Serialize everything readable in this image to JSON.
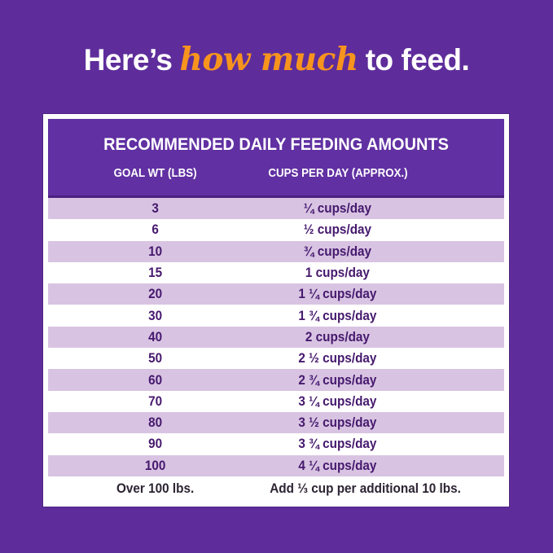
{
  "colors": {
    "background": "#5e2d9b",
    "header_purple": "#6130a2",
    "header_border": "#4b2282",
    "row_shaded": "#d8c4e2",
    "row_text": "#46196e",
    "footer_text": "#2d2433",
    "highlight_orange": "#f7941e",
    "headline_text": "#ffffff",
    "card_background": "#ffffff"
  },
  "headline": {
    "prefix": "Here’s",
    "highlight": "how much",
    "suffix": "to feed."
  },
  "chart_data": {
    "type": "table",
    "title": "RECOMMENDED DAILY FEEDING AMOUNTS",
    "columns": [
      "GOAL WT (LBS)",
      "CUPS PER DAY (APPROX.)"
    ],
    "rows": [
      [
        "3",
        "¼ cups/day"
      ],
      [
        "6",
        "½ cups/day"
      ],
      [
        "10",
        "¾ cups/day"
      ],
      [
        "15",
        "1 cups/day"
      ],
      [
        "20",
        "1 ¼ cups/day"
      ],
      [
        "30",
        "1 ¾ cups/day"
      ],
      [
        "40",
        "2 cups/day"
      ],
      [
        "50",
        "2 ½ cups/day"
      ],
      [
        "60",
        "2 ¾ cups/day"
      ],
      [
        "70",
        "3 ¼ cups/day"
      ],
      [
        "80",
        "3 ½ cups/day"
      ],
      [
        "90",
        "3 ¾ cups/day"
      ],
      [
        "100",
        "4 ¼ cups/day"
      ]
    ],
    "footer_row": [
      "Over 100 lbs.",
      "Add ⅓ cup per additional 10 lbs."
    ],
    "layout": {
      "shading": "rows alternate, first row shaded lavender",
      "legend": "none",
      "grid": "off"
    }
  }
}
